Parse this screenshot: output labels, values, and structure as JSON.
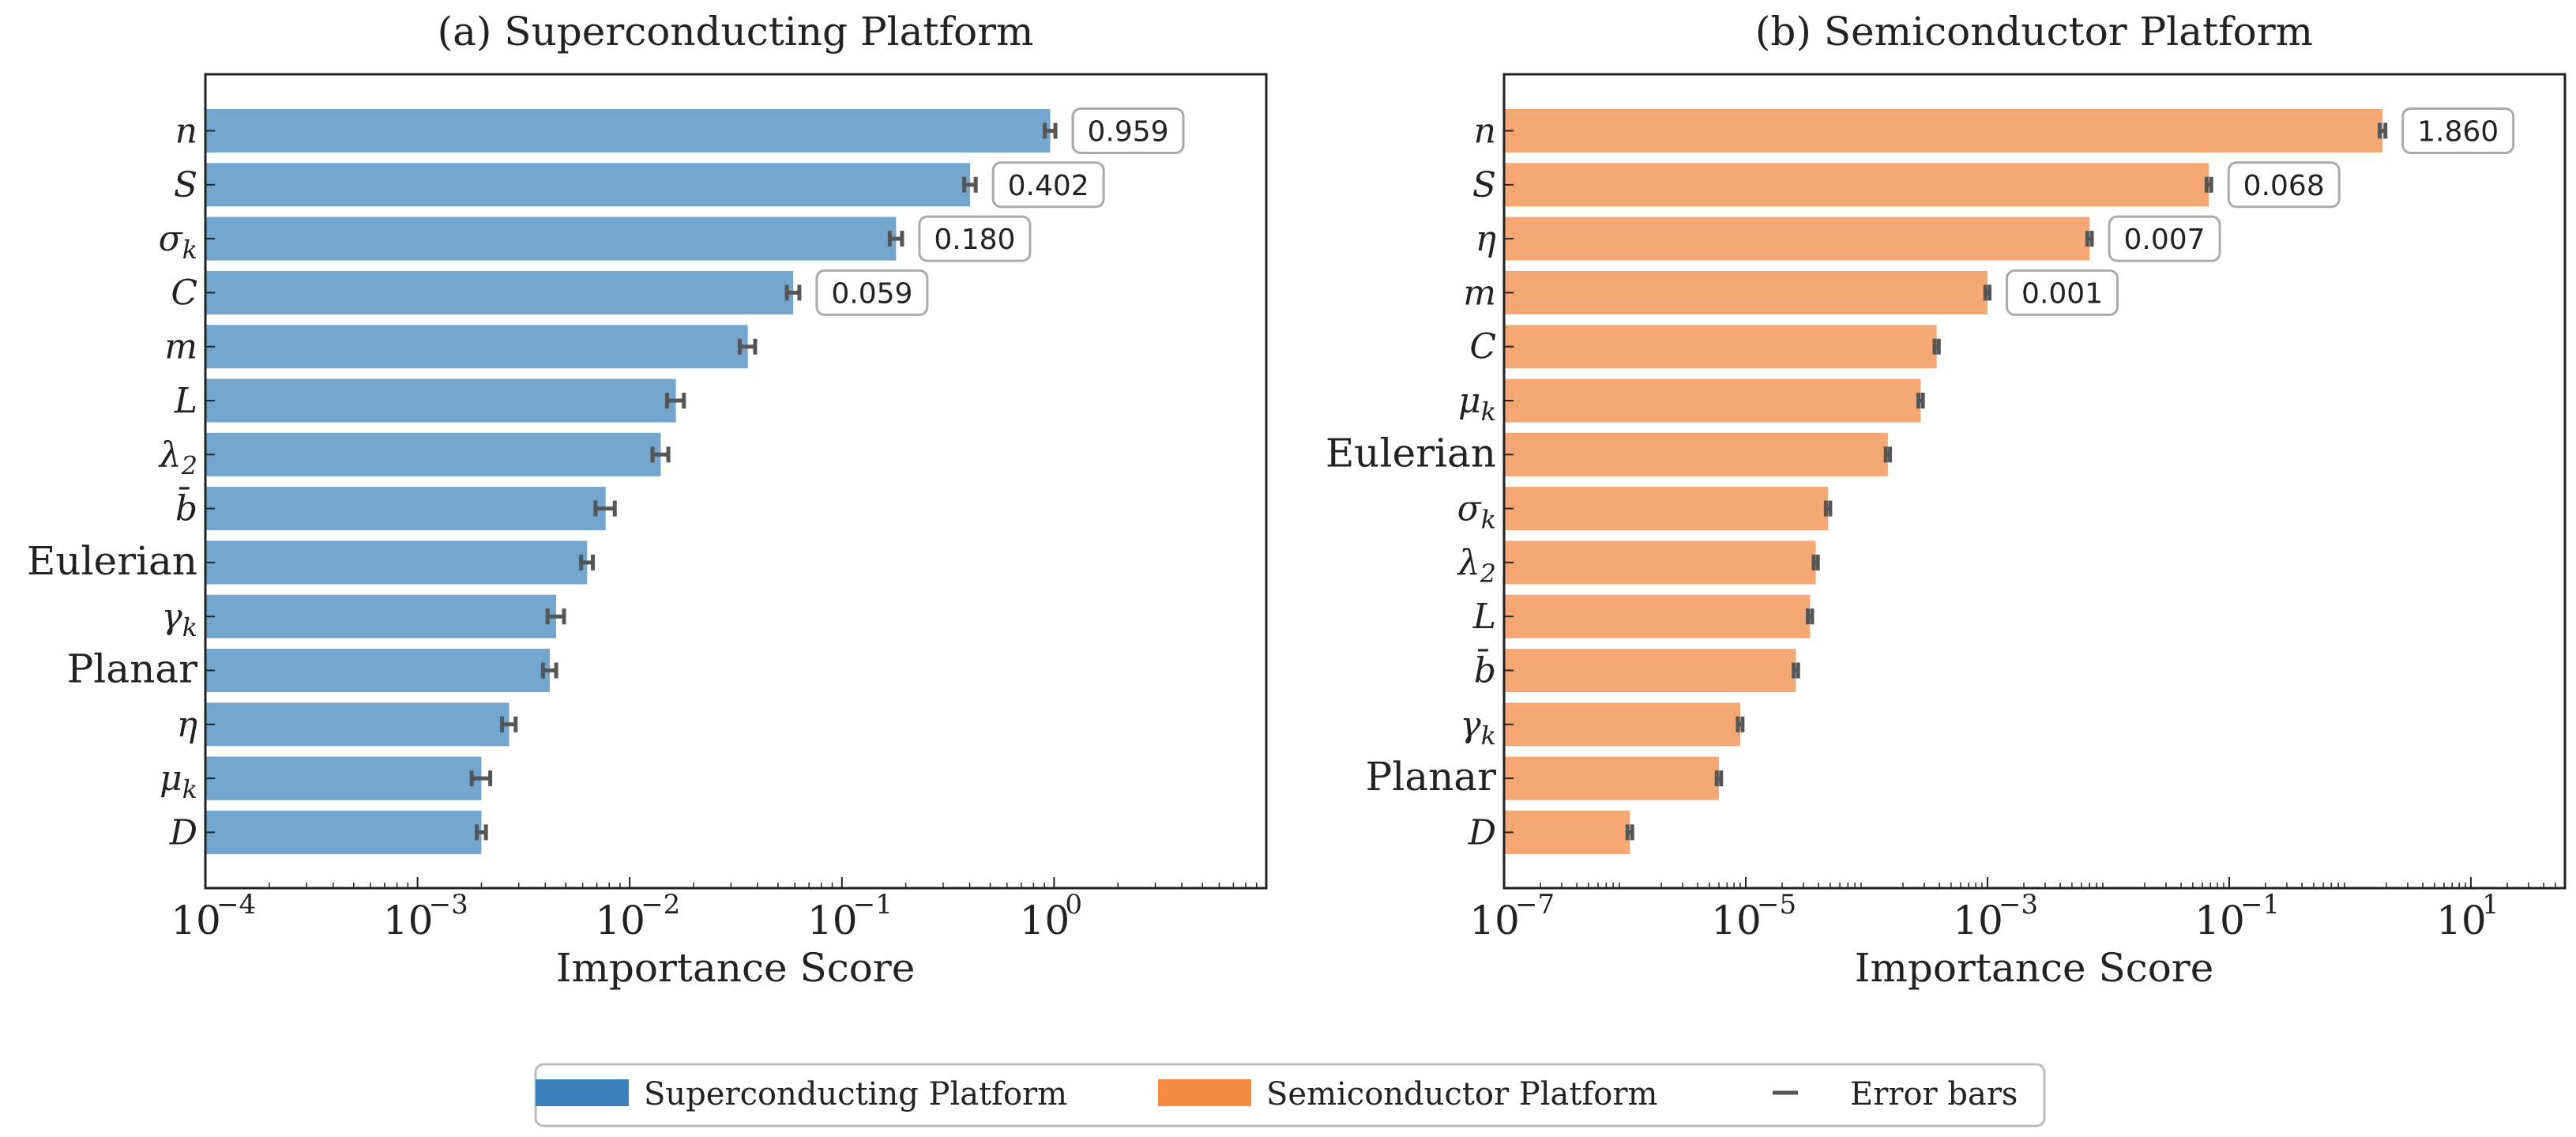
{
  "chart_data": [
    {
      "type": "bar",
      "orientation": "horizontal",
      "title": "(a) Superconducting Platform",
      "xlabel": "Importance Score",
      "ylabel": "",
      "xscale": "log",
      "xlim": [
        0.0001,
        10
      ],
      "xticks": [
        {
          "base": "10",
          "exp": "−4",
          "value": 0.0001
        },
        {
          "base": "10",
          "exp": "−3",
          "value": 0.001
        },
        {
          "base": "10",
          "exp": "−2",
          "value": 0.01
        },
        {
          "base": "10",
          "exp": "−1",
          "value": 0.1
        },
        {
          "base": "10",
          "exp": "0",
          "value": 1
        }
      ],
      "color": "#73a6cf",
      "categories": [
        "n",
        "S",
        "σ_k",
        "C",
        "m",
        "L",
        "λ_2",
        "b̄",
        "Eulerian",
        "γ_k",
        "Planar",
        "η",
        "μ_k",
        "D"
      ],
      "values": [
        0.959,
        0.402,
        0.18,
        0.059,
        0.036,
        0.0165,
        0.014,
        0.0077,
        0.0063,
        0.0045,
        0.0042,
        0.0027,
        0.002,
        0.002
      ],
      "errors": [
        0.055,
        0.025,
        0.012,
        0.004,
        0.003,
        0.0015,
        0.0012,
        0.0008,
        0.0004,
        0.0004,
        0.0003,
        0.0002,
        0.0002,
        0.0001
      ],
      "annotations": [
        "0.959",
        "0.402",
        "0.180",
        "0.059"
      ]
    },
    {
      "type": "bar",
      "orientation": "horizontal",
      "title": "(b) Semiconductor Platform",
      "xlabel": "Importance Score",
      "ylabel": "",
      "xscale": "log",
      "xlim": [
        1e-07,
        60
      ],
      "xticks": [
        {
          "base": "10",
          "exp": "−7",
          "value": 1e-07
        },
        {
          "base": "10",
          "exp": "−5",
          "value": 1e-05
        },
        {
          "base": "10",
          "exp": "−3",
          "value": 0.001
        },
        {
          "base": "10",
          "exp": "−1",
          "value": 0.1
        },
        {
          "base": "10",
          "exp": "1",
          "value": 10
        }
      ],
      "color": "#f6a874",
      "categories": [
        "n",
        "S",
        "η",
        "m",
        "C",
        "μ_k",
        "Eulerian",
        "σ_k",
        "λ_2",
        "L",
        "b̄",
        "γ_k",
        "Planar",
        "D"
      ],
      "values": [
        1.86,
        0.068,
        0.007,
        0.001,
        0.00038,
        0.00028,
        0.00015,
        4.8e-05,
        3.8e-05,
        3.4e-05,
        2.6e-05,
        9e-06,
        6e-06,
        1.1e-06
      ],
      "errors": [
        0.1,
        0.003,
        0.0003,
        4e-05,
        1.5e-05,
        1.2e-05,
        6e-06,
        2e-06,
        1.5e-06,
        1.4e-06,
        1.1e-06,
        4e-07,
        2.5e-07,
        5e-08
      ],
      "annotations": [
        "1.860",
        "0.068",
        "0.007",
        "0.001"
      ]
    }
  ],
  "legend": {
    "position": "bottom-center",
    "items": [
      {
        "label": "Superconducting Platform",
        "color": "#3a7fbe",
        "kind": "patch"
      },
      {
        "label": "Semiconductor Platform",
        "color": "#f58b3f",
        "kind": "patch"
      },
      {
        "label": "Error bars",
        "color": "#555555",
        "kind": "line"
      }
    ]
  },
  "errorbar_color": "#555555"
}
